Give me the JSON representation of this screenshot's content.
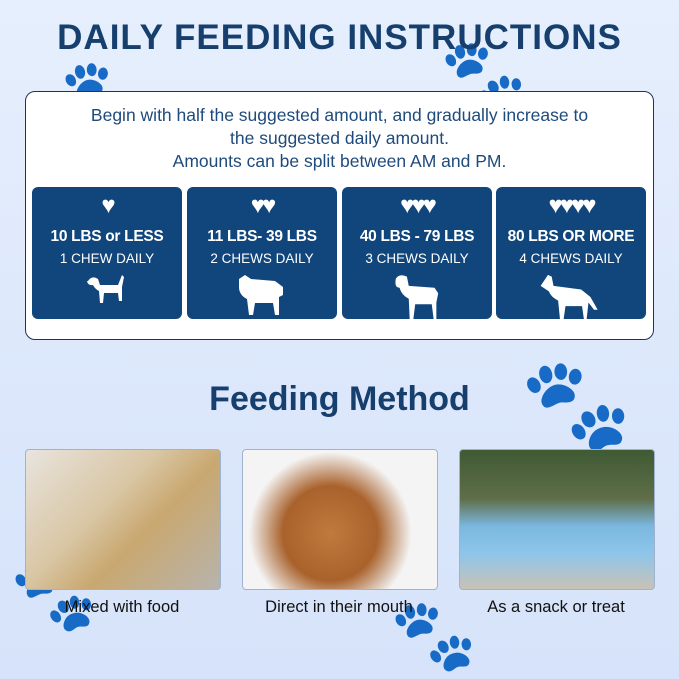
{
  "title": "DAILY FEEDING INSTRUCTIONS",
  "intro": [
    "Begin with half the suggested amount, and gradually increase to",
    "the suggested daily amount.",
    "Amounts can be split between AM and PM."
  ],
  "cards": [
    {
      "hearts": 1,
      "hearts_text": "♥",
      "range": "10 LBS or LESS",
      "chews": "1  CHEW DAILY",
      "icon": "small-dog-icon"
    },
    {
      "hearts": 2,
      "hearts_text": "♥♥",
      "range": "11 LBS- 39 LBS",
      "chews": "2  CHEWS DAILY",
      "icon": "bulldog-icon"
    },
    {
      "hearts": 3,
      "hearts_text": "♥♥♥",
      "range": "40 LBS - 79 LBS",
      "chews": "3  CHEWS DAILY",
      "icon": "rottweiler-icon"
    },
    {
      "hearts": 4,
      "hearts_text": "♥♥♥♥",
      "range": "80 LBS OR MORE",
      "chews": "4  CHEWS DAILY",
      "icon": "shepherd-icon"
    }
  ],
  "method_title": "Feeding Method",
  "methods": [
    {
      "caption": "Mixed with food"
    },
    {
      "caption": "Direct in their mouth"
    },
    {
      "caption": "As a snack or treat"
    }
  ],
  "colors": {
    "accent": "#11467c",
    "title": "#163f6e",
    "background": "#dde8fb"
  }
}
